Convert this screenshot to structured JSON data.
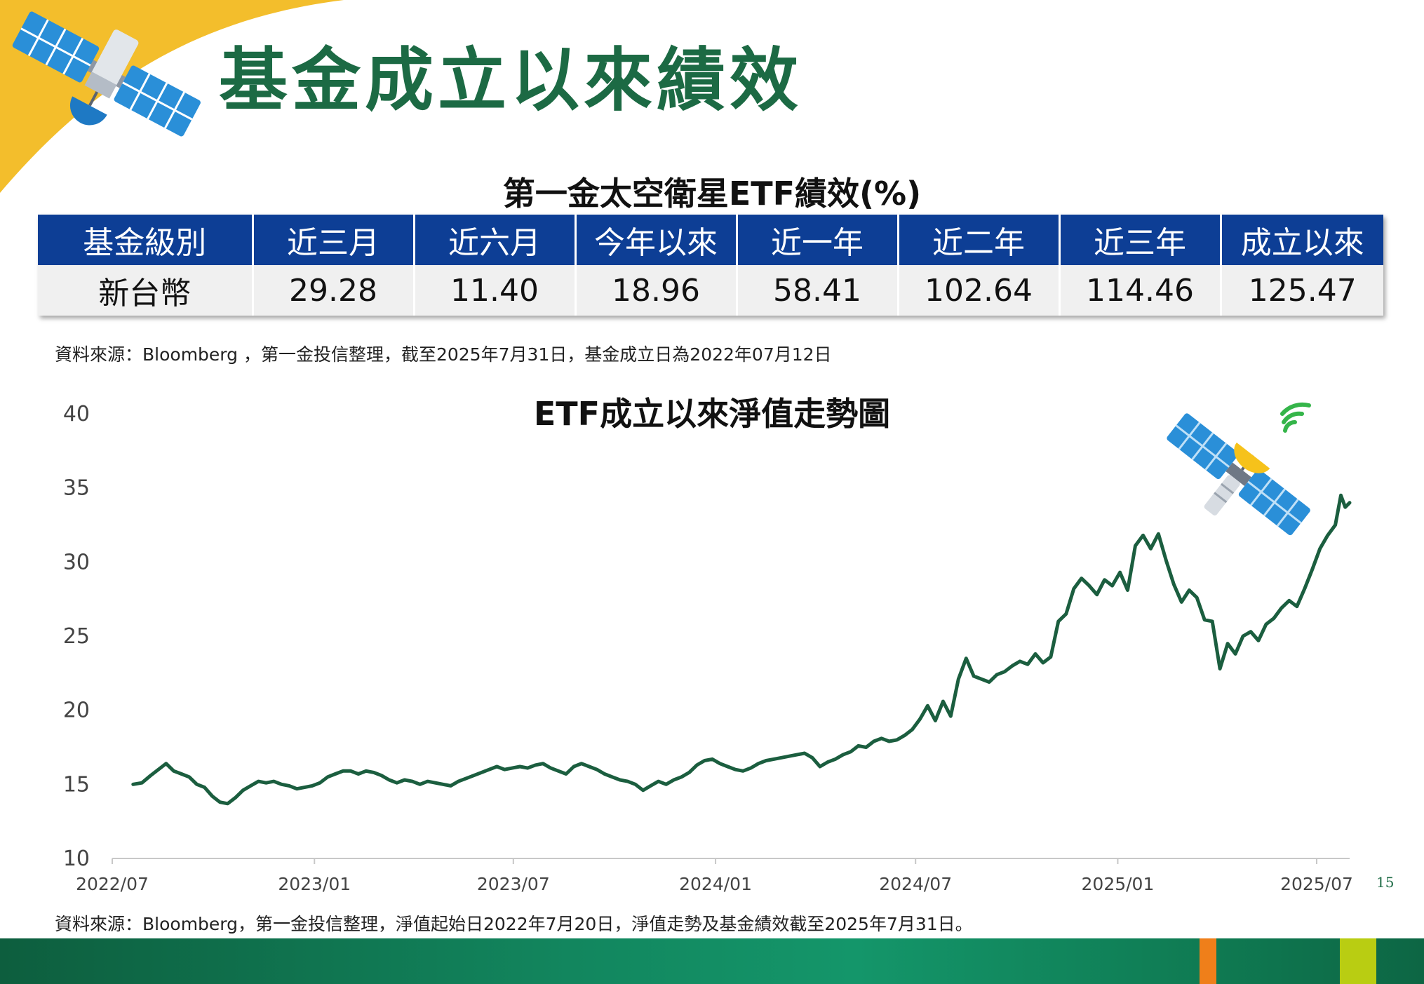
{
  "page": {
    "title": "基金成立以來績效",
    "page_number": "15"
  },
  "performance_table": {
    "title": "第一金太空衛星ETF績效(%)",
    "headers": [
      "基金級別",
      "近三月",
      "近六月",
      "今年以來",
      "近一年",
      "近二年",
      "近三年",
      "成立以來"
    ],
    "rows": [
      [
        "新台幣",
        "29.28",
        "11.40",
        "18.96",
        "58.41",
        "102.64",
        "114.46",
        "125.47"
      ]
    ]
  },
  "source_note_1": "資料來源：Bloomberg ，第一金投信整理，截至2025年7月31日，基金成立日為2022年07月12日",
  "source_note_2": "資料來源：Bloomberg，第一金投信整理，淨值起始日2022年7月20日，淨值走勢及基金績效截至2025年7月31日。",
  "colors": {
    "title_green": "#1c6a44",
    "table_header_blue": "#0d3e95",
    "line_green": "#1b5e3f",
    "accent_yellow": "#f3be2c"
  },
  "chart_data": {
    "type": "line",
    "title": "ETF成立以來淨值走勢圖",
    "xlabel": "",
    "ylabel": "",
    "ylim": [
      10,
      40
    ],
    "yticks": [
      10,
      15,
      20,
      25,
      30,
      35,
      40
    ],
    "xlim": [
      "2022-07-01",
      "2025-07-31"
    ],
    "xticks": [
      {
        "date": "2022-07-01",
        "label": "2022/07"
      },
      {
        "date": "2023-01-01",
        "label": "2023/01"
      },
      {
        "date": "2023-07-01",
        "label": "2023/07"
      },
      {
        "date": "2024-01-01",
        "label": "2024/01"
      },
      {
        "date": "2024-07-01",
        "label": "2024/07"
      },
      {
        "date": "2025-01-01",
        "label": "2025/01"
      },
      {
        "date": "2025-07-01",
        "label": "2025/07"
      }
    ],
    "grid": false,
    "series": [
      {
        "points": [
          [
            "2022-07-20",
            15.0
          ],
          [
            "2022-07-28",
            15.1
          ],
          [
            "2022-08-05",
            15.6
          ],
          [
            "2022-08-12",
            16.0
          ],
          [
            "2022-08-19",
            16.4
          ],
          [
            "2022-08-26",
            15.9
          ],
          [
            "2022-09-02",
            15.7
          ],
          [
            "2022-09-09",
            15.5
          ],
          [
            "2022-09-16",
            15.0
          ],
          [
            "2022-09-23",
            14.8
          ],
          [
            "2022-09-30",
            14.2
          ],
          [
            "2022-10-07",
            13.8
          ],
          [
            "2022-10-14",
            13.7
          ],
          [
            "2022-10-21",
            14.1
          ],
          [
            "2022-10-28",
            14.6
          ],
          [
            "2022-11-04",
            14.9
          ],
          [
            "2022-11-11",
            15.2
          ],
          [
            "2022-11-18",
            15.1
          ],
          [
            "2022-11-25",
            15.2
          ],
          [
            "2022-12-02",
            15.0
          ],
          [
            "2022-12-09",
            14.9
          ],
          [
            "2022-12-16",
            14.7
          ],
          [
            "2022-12-23",
            14.8
          ],
          [
            "2022-12-30",
            14.9
          ],
          [
            "2023-01-06",
            15.1
          ],
          [
            "2023-01-13",
            15.5
          ],
          [
            "2023-01-20",
            15.7
          ],
          [
            "2023-01-27",
            15.9
          ],
          [
            "2023-02-03",
            15.9
          ],
          [
            "2023-02-10",
            15.7
          ],
          [
            "2023-02-17",
            15.9
          ],
          [
            "2023-02-24",
            15.8
          ],
          [
            "2023-03-03",
            15.6
          ],
          [
            "2023-03-10",
            15.3
          ],
          [
            "2023-03-17",
            15.1
          ],
          [
            "2023-03-24",
            15.3
          ],
          [
            "2023-03-31",
            15.2
          ],
          [
            "2023-04-07",
            15.0
          ],
          [
            "2023-04-14",
            15.2
          ],
          [
            "2023-04-21",
            15.1
          ],
          [
            "2023-04-28",
            15.0
          ],
          [
            "2023-05-05",
            14.9
          ],
          [
            "2023-05-12",
            15.2
          ],
          [
            "2023-05-19",
            15.4
          ],
          [
            "2023-05-26",
            15.6
          ],
          [
            "2023-06-02",
            15.8
          ],
          [
            "2023-06-09",
            16.0
          ],
          [
            "2023-06-16",
            16.2
          ],
          [
            "2023-06-23",
            16.0
          ],
          [
            "2023-06-30",
            16.1
          ],
          [
            "2023-07-07",
            16.2
          ],
          [
            "2023-07-14",
            16.1
          ],
          [
            "2023-07-21",
            16.3
          ],
          [
            "2023-07-28",
            16.4
          ],
          [
            "2023-08-04",
            16.1
          ],
          [
            "2023-08-11",
            15.9
          ],
          [
            "2023-08-18",
            15.7
          ],
          [
            "2023-08-25",
            16.2
          ],
          [
            "2023-09-01",
            16.4
          ],
          [
            "2023-09-08",
            16.2
          ],
          [
            "2023-09-15",
            16.0
          ],
          [
            "2023-09-22",
            15.7
          ],
          [
            "2023-09-29",
            15.5
          ],
          [
            "2023-10-06",
            15.3
          ],
          [
            "2023-10-13",
            15.2
          ],
          [
            "2023-10-20",
            15.0
          ],
          [
            "2023-10-27",
            14.6
          ],
          [
            "2023-11-03",
            14.9
          ],
          [
            "2023-11-10",
            15.2
          ],
          [
            "2023-11-17",
            15.0
          ],
          [
            "2023-11-24",
            15.3
          ],
          [
            "2023-12-01",
            15.5
          ],
          [
            "2023-12-08",
            15.8
          ],
          [
            "2023-12-15",
            16.3
          ],
          [
            "2023-12-22",
            16.6
          ],
          [
            "2023-12-29",
            16.7
          ],
          [
            "2024-01-05",
            16.4
          ],
          [
            "2024-01-12",
            16.2
          ],
          [
            "2024-01-19",
            16.0
          ],
          [
            "2024-01-26",
            15.9
          ],
          [
            "2024-02-02",
            16.1
          ],
          [
            "2024-02-09",
            16.4
          ],
          [
            "2024-02-16",
            16.6
          ],
          [
            "2024-02-23",
            16.7
          ],
          [
            "2024-03-01",
            16.8
          ],
          [
            "2024-03-08",
            16.9
          ],
          [
            "2024-03-15",
            17.0
          ],
          [
            "2024-03-22",
            17.1
          ],
          [
            "2024-03-29",
            16.8
          ],
          [
            "2024-04-05",
            16.2
          ],
          [
            "2024-04-12",
            16.5
          ],
          [
            "2024-04-19",
            16.7
          ],
          [
            "2024-04-26",
            17.0
          ],
          [
            "2024-05-03",
            17.2
          ],
          [
            "2024-05-10",
            17.6
          ],
          [
            "2024-05-17",
            17.5
          ],
          [
            "2024-05-24",
            17.9
          ],
          [
            "2024-05-31",
            18.1
          ],
          [
            "2024-06-07",
            17.9
          ],
          [
            "2024-06-14",
            18.0
          ],
          [
            "2024-06-21",
            18.3
          ],
          [
            "2024-06-28",
            18.7
          ],
          [
            "2024-07-05",
            19.4
          ],
          [
            "2024-07-12",
            20.3
          ],
          [
            "2024-07-19",
            19.3
          ],
          [
            "2024-07-26",
            20.6
          ],
          [
            "2024-08-02",
            19.6
          ],
          [
            "2024-08-09",
            22.1
          ],
          [
            "2024-08-16",
            23.5
          ],
          [
            "2024-08-23",
            22.3
          ],
          [
            "2024-08-30",
            22.1
          ],
          [
            "2024-09-06",
            21.9
          ],
          [
            "2024-09-13",
            22.4
          ],
          [
            "2024-09-20",
            22.6
          ],
          [
            "2024-09-27",
            23.0
          ],
          [
            "2024-10-04",
            23.3
          ],
          [
            "2024-10-11",
            23.1
          ],
          [
            "2024-10-18",
            23.8
          ],
          [
            "2024-10-25",
            23.2
          ],
          [
            "2024-11-01",
            23.6
          ],
          [
            "2024-11-08",
            26.0
          ],
          [
            "2024-11-15",
            26.5
          ],
          [
            "2024-11-22",
            28.2
          ],
          [
            "2024-11-29",
            28.9
          ],
          [
            "2024-12-06",
            28.4
          ],
          [
            "2024-12-13",
            27.8
          ],
          [
            "2024-12-20",
            28.8
          ],
          [
            "2024-12-27",
            28.4
          ],
          [
            "2025-01-03",
            29.3
          ],
          [
            "2025-01-10",
            28.1
          ],
          [
            "2025-01-17",
            31.1
          ],
          [
            "2025-01-24",
            31.8
          ],
          [
            "2025-01-31",
            30.9
          ],
          [
            "2025-02-07",
            31.9
          ],
          [
            "2025-02-14",
            30.1
          ],
          [
            "2025-02-21",
            28.5
          ],
          [
            "2025-02-28",
            27.3
          ],
          [
            "2025-03-07",
            28.1
          ],
          [
            "2025-03-14",
            27.6
          ],
          [
            "2025-03-21",
            26.1
          ],
          [
            "2025-03-28",
            26.0
          ],
          [
            "2025-04-04",
            22.8
          ],
          [
            "2025-04-11",
            24.5
          ],
          [
            "2025-04-18",
            23.8
          ],
          [
            "2025-04-25",
            25.0
          ],
          [
            "2025-05-02",
            25.3
          ],
          [
            "2025-05-09",
            24.7
          ],
          [
            "2025-05-16",
            25.8
          ],
          [
            "2025-05-23",
            26.2
          ],
          [
            "2025-05-30",
            26.9
          ],
          [
            "2025-06-06",
            27.4
          ],
          [
            "2025-06-13",
            27.0
          ],
          [
            "2025-06-20",
            28.2
          ],
          [
            "2025-06-27",
            29.5
          ],
          [
            "2025-07-04",
            30.9
          ],
          [
            "2025-07-11",
            31.8
          ],
          [
            "2025-07-18",
            32.5
          ],
          [
            "2025-07-23",
            34.5
          ],
          [
            "2025-07-27",
            33.7
          ],
          [
            "2025-07-31",
            34.0
          ]
        ]
      }
    ]
  }
}
